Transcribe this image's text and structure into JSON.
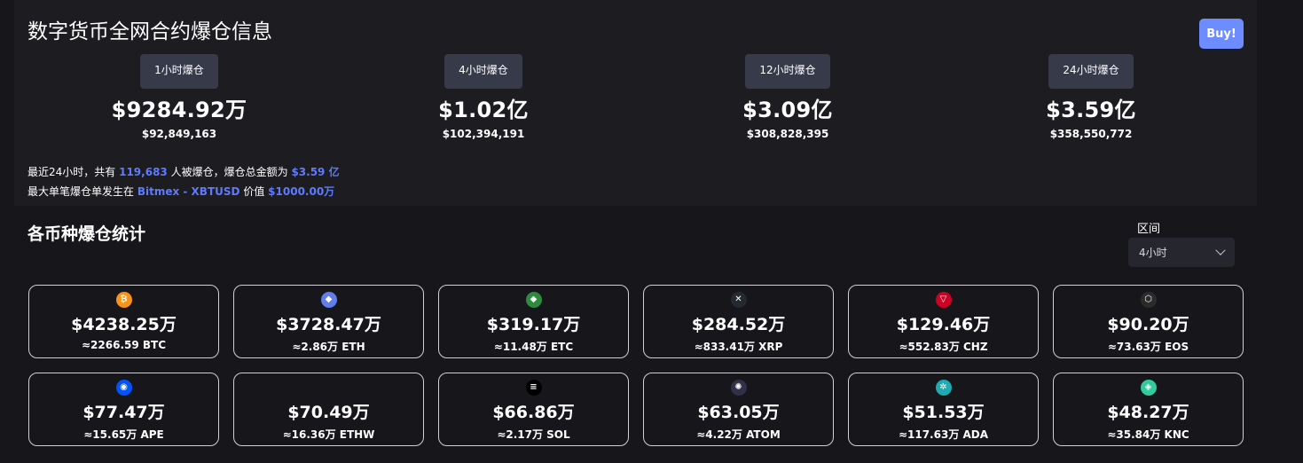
{
  "page": {
    "title": "数字货币全网合约爆仓信息",
    "buy_label": "Buy!"
  },
  "periods": [
    {
      "tag": "1小时爆仓",
      "main": "$9284.92万",
      "sub": "$92,849,163"
    },
    {
      "tag": "4小时爆仓",
      "main": "$1.02亿",
      "sub": "$102,394,191"
    },
    {
      "tag": "12小时爆仓",
      "main": "$3.09亿",
      "sub": "$308,828,395"
    },
    {
      "tag": "24小时爆仓",
      "main": "$3.59亿",
      "sub": "$358,550,772"
    }
  ],
  "summary": {
    "line1_prefix": "最近24小时，共有",
    "people": "119,683",
    "line1_mid": "人被爆仓，爆仓总金额为",
    "total": "$3.59 亿",
    "line2_prefix": "最大单笔爆仓单发生在",
    "exchange": "Bitmex - XBTUSD",
    "line2_mid": "价值",
    "max_value": "$1000.00万"
  },
  "section": {
    "title": "各币种爆仓统计",
    "range_label": "区间",
    "range_value": "4小时"
  },
  "colors": {
    "accent": "#5e7bff",
    "buy": "#6c8cff",
    "tag_bg": "#373a48"
  },
  "coins": [
    {
      "icon": "bitcoin-icon",
      "glyph": "₿",
      "color": "#f7931a",
      "main": "$4238.25万",
      "sub": "≈2266.59 BTC"
    },
    {
      "icon": "ethereum-icon",
      "glyph": "◆",
      "color": "#627eea",
      "main": "$3728.47万",
      "sub": "≈2.86万 ETH"
    },
    {
      "icon": "ethereum-classic-icon",
      "glyph": "◆",
      "color": "#2e8b3d",
      "main": "$319.17万",
      "sub": "≈11.48万 ETC"
    },
    {
      "icon": "xrp-icon",
      "glyph": "✕",
      "color": "#23292f",
      "main": "$284.52万",
      "sub": "≈833.41万 XRP"
    },
    {
      "icon": "chiliz-icon",
      "glyph": "▽",
      "color": "#cd0124",
      "main": "$129.46万",
      "sub": "≈552.83万 CHZ"
    },
    {
      "icon": "eos-icon",
      "glyph": "⬡",
      "color": "#2b2b2b",
      "main": "$90.20万",
      "sub": "≈73.63万 EOS"
    },
    {
      "icon": "apecoin-icon",
      "glyph": "◉",
      "color": "#0054f9",
      "main": "$77.47万",
      "sub": "≈15.65万 APE"
    },
    {
      "icon": "ethw-icon",
      "glyph": "",
      "color": "#17171b",
      "main": "$70.49万",
      "sub": "≈16.36万 ETHW"
    },
    {
      "icon": "solana-icon",
      "glyph": "≡",
      "color": "#000000",
      "main": "$66.86万",
      "sub": "≈2.17万 SOL"
    },
    {
      "icon": "cosmos-icon",
      "glyph": "✺",
      "color": "#2e3148",
      "main": "$63.05万",
      "sub": "≈4.22万 ATOM"
    },
    {
      "icon": "cardano-icon",
      "glyph": "✲",
      "color": "#1fa9b0",
      "main": "$51.53万",
      "sub": "≈117.63万 ADA"
    },
    {
      "icon": "kyber-icon",
      "glyph": "◈",
      "color": "#31cb9e",
      "main": "$48.27万",
      "sub": "≈35.84万 KNC"
    }
  ]
}
